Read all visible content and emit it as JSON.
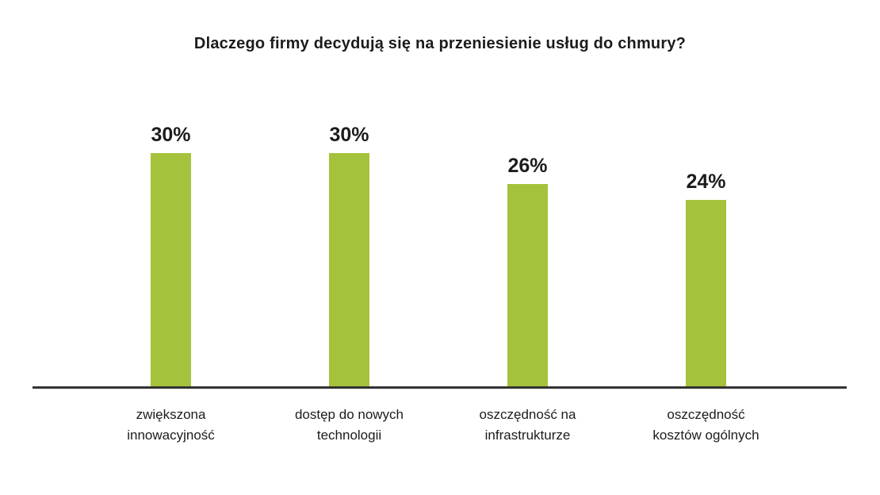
{
  "chart_data": {
    "type": "bar",
    "title": "Dlaczego firmy decydują się na przeniesienie usług do chmury?",
    "categories": [
      "zwiększona innowacyjność",
      "dostęp do nowych technologii",
      "oszczędność na infrastrukturze",
      "oszczędność kosztów ogólnych"
    ],
    "category_labels": [
      "zwiększona\ninnowacyjność",
      "dostęp do nowych\ntechnologii",
      "oszczędność na\ninfrastrukturze",
      "oszczędność\nkosztów ogólnych"
    ],
    "values": [
      30,
      30,
      26,
      24
    ],
    "value_labels": [
      "30%",
      "30%",
      "26%",
      "24%"
    ],
    "unit": "%",
    "xlabel": "",
    "ylabel": "",
    "ylim": [
      0,
      30
    ],
    "grid": false,
    "legend": "none",
    "bar_color": "#a4c23b",
    "axis_color": "#333333",
    "text_color": "#1c1c1c"
  }
}
